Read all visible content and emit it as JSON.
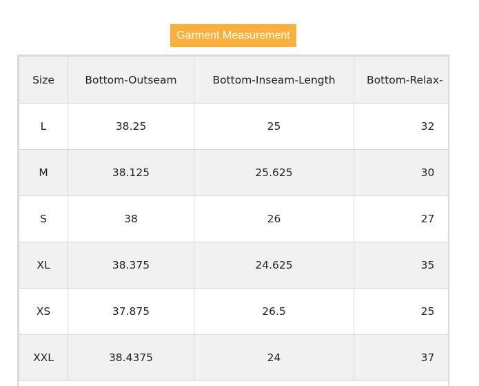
{
  "title": "Garment Measurement",
  "colors": {
    "title_bg": "#fbb03b",
    "row_alt": "#f1f1f1",
    "border": "#d9d9dd"
  },
  "table": {
    "headers": [
      "Size",
      "Bottom-Outseam",
      "Bottom-Inseam-Length",
      "Bottom-Relax-"
    ],
    "rows": [
      [
        "L",
        "38.25",
        "25",
        "32"
      ],
      [
        "M",
        "38.125",
        "25.625",
        "30"
      ],
      [
        "S",
        "38",
        "26",
        "27"
      ],
      [
        "XL",
        "38.375",
        "24.625",
        "35"
      ],
      [
        "XS",
        "37.875",
        "26.5",
        "25"
      ],
      [
        "XXL",
        "38.4375",
        "24",
        "37"
      ]
    ]
  }
}
